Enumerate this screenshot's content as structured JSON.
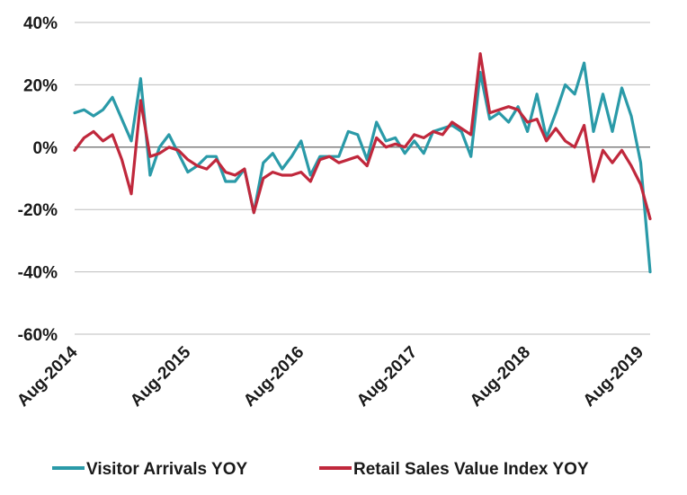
{
  "chart_data": {
    "type": "line",
    "title": "",
    "xlabel": "",
    "ylabel": "",
    "ylim": [
      -60,
      40
    ],
    "yticks": [
      40,
      20,
      0,
      -20,
      -40,
      -60
    ],
    "ytick_labels": [
      "40%",
      "20%",
      "0%",
      "-20%",
      "-40%",
      "-60%"
    ],
    "x_start": "2014-08",
    "xtick_labels": [
      "Aug-2014",
      "Aug-2015",
      "Aug-2016",
      "Aug-2017",
      "Aug-2018",
      "Aug-2019"
    ],
    "grid": "horizontal",
    "legend_position": "bottom",
    "series": [
      {
        "name": "Visitor Arrivals YOY",
        "color": "#2a9aa8",
        "values": [
          11,
          12,
          10,
          12,
          16,
          9,
          2,
          22,
          -9,
          0,
          4,
          -2,
          -8,
          -6,
          -3,
          -3,
          -11,
          -11,
          -7,
          -21,
          -5,
          -2,
          -7,
          -3,
          2,
          -9,
          -3,
          -3,
          -3,
          5,
          4,
          -4,
          8,
          2,
          3,
          -2,
          2,
          -2,
          5,
          6,
          7,
          5,
          -3,
          24,
          9,
          11,
          8,
          13,
          5,
          17,
          3,
          11,
          20,
          17,
          27,
          5,
          17,
          5,
          19,
          10,
          -5,
          -40
        ]
      },
      {
        "name": "Retail Sales Value Index YOY",
        "color": "#c0283c",
        "values": [
          -1,
          3,
          5,
          2,
          4,
          -4,
          -15,
          15,
          -3,
          -2,
          0,
          -1,
          -4,
          -6,
          -7,
          -4,
          -8,
          -9,
          -7,
          -21,
          -10,
          -8,
          -9,
          -9,
          -8,
          -11,
          -4,
          -3,
          -5,
          -4,
          -3,
          -6,
          3,
          0,
          1,
          0,
          4,
          3,
          5,
          4,
          8,
          6,
          4,
          30,
          11,
          12,
          13,
          12,
          8,
          9,
          2,
          6,
          2,
          0,
          7,
          -11,
          -1,
          -5,
          -1,
          -6,
          -12,
          -23
        ]
      }
    ]
  }
}
